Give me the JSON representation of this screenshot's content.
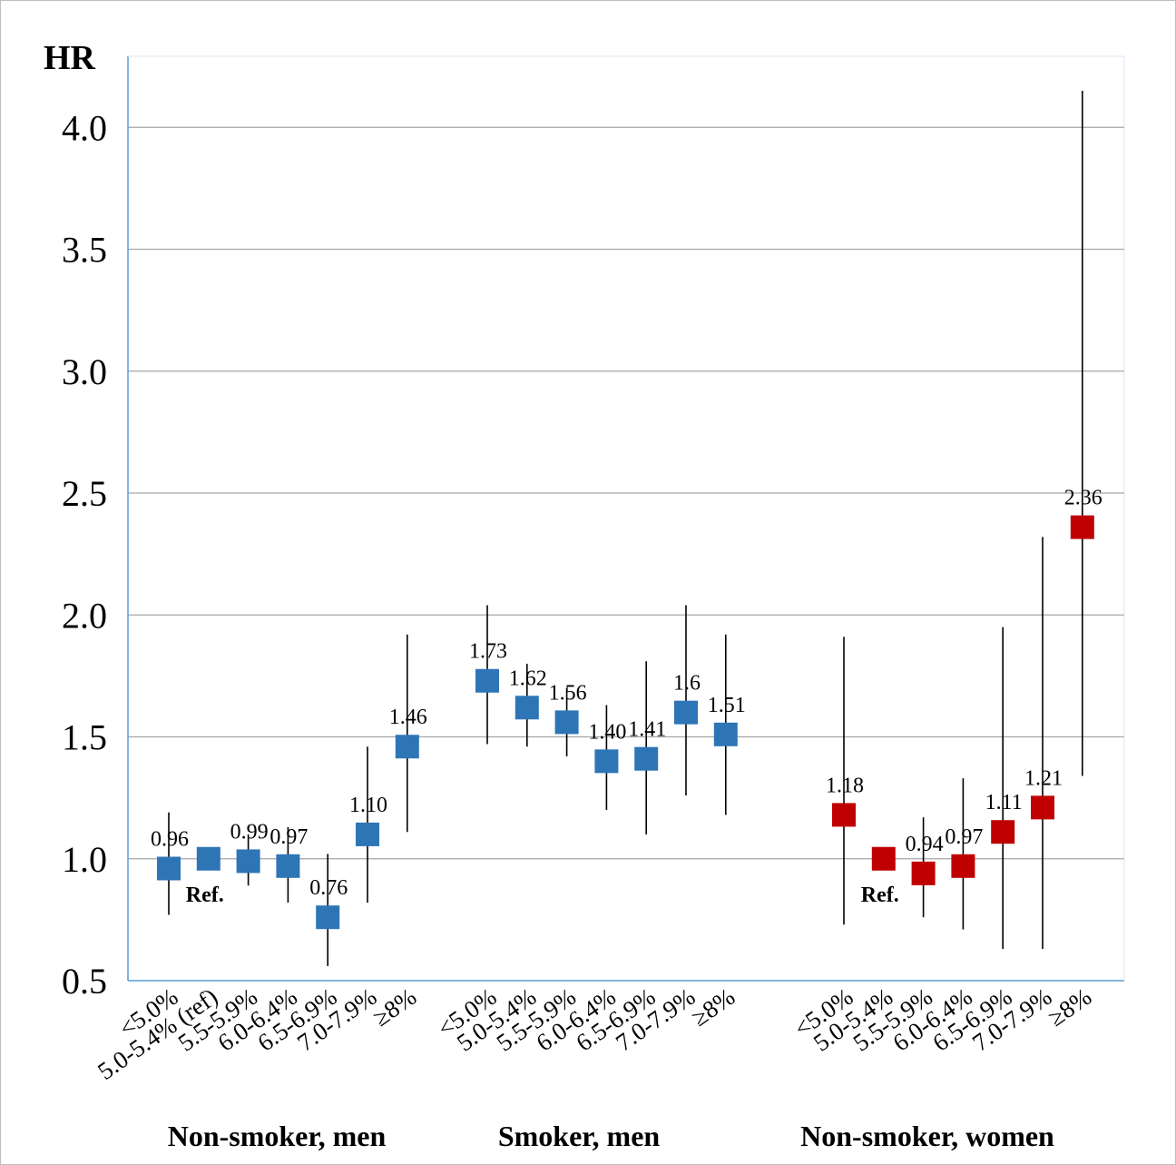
{
  "chart_data": {
    "type": "scatter",
    "ylabel": "HR",
    "ylim": [
      0.5,
      4.25
    ],
    "yticks": [
      "0.5",
      "1.0",
      "1.5",
      "2.0",
      "2.5",
      "3.0",
      "3.5",
      "4.0"
    ],
    "grid": true,
    "ref_label": "Ref.",
    "groups": [
      {
        "name": "Non-smoker, men",
        "color": "#2e75b6",
        "categories": [
          "<5.0%",
          "5.0-5.4% (ref)",
          "5.5-5.9%",
          "6.0-6.4%",
          "6.5-6.9%",
          "7.0-7.9%",
          "≥8%"
        ],
        "values": [
          0.96,
          1.0,
          0.99,
          0.97,
          0.76,
          1.1,
          1.46
        ],
        "labels": [
          "0.96",
          "Ref.",
          "0.99",
          "0.97",
          "0.76",
          "1.10",
          "1.46"
        ],
        "ci_low": [
          0.77,
          null,
          0.89,
          0.82,
          0.56,
          0.82,
          1.11
        ],
        "ci_high": [
          1.19,
          null,
          1.1,
          1.13,
          1.02,
          1.46,
          1.92
        ]
      },
      {
        "name": "Smoker, men",
        "color": "#2e75b6",
        "categories": [
          "<5.0%",
          "5.0-5.4%",
          "5.5-5.9%",
          "6.0-6.4%",
          "6.5-6.9%",
          "7.0-7.9%",
          "≥8%"
        ],
        "values": [
          1.73,
          1.62,
          1.56,
          1.4,
          1.41,
          1.6,
          1.51
        ],
        "labels": [
          "1.73",
          "1.62",
          "1.56",
          "1.40",
          "1.41",
          "1.6",
          "1.51"
        ],
        "ci_low": [
          1.47,
          1.46,
          1.42,
          1.2,
          1.1,
          1.26,
          1.18
        ],
        "ci_high": [
          2.04,
          1.8,
          1.7,
          1.63,
          1.81,
          2.04,
          1.92
        ]
      },
      {
        "name": "Non-smoker, women",
        "color": "#c00000",
        "categories": [
          "<5.0%",
          "5.0-5.4%",
          "5.5-5.9%",
          "6.0-6.4%",
          "6.5-6.9%",
          "7.0-7.9%",
          "≥8%"
        ],
        "values": [
          1.18,
          1.0,
          0.94,
          0.97,
          1.11,
          1.21,
          2.36
        ],
        "labels": [
          "1.18",
          "Ref.",
          "0.94",
          "0.97",
          "1.11",
          "1.21",
          "2.36"
        ],
        "ci_low": [
          0.73,
          null,
          0.76,
          0.71,
          0.63,
          0.63,
          1.34
        ],
        "ci_high": [
          1.91,
          null,
          1.17,
          1.33,
          1.95,
          2.32,
          4.15
        ]
      }
    ]
  }
}
